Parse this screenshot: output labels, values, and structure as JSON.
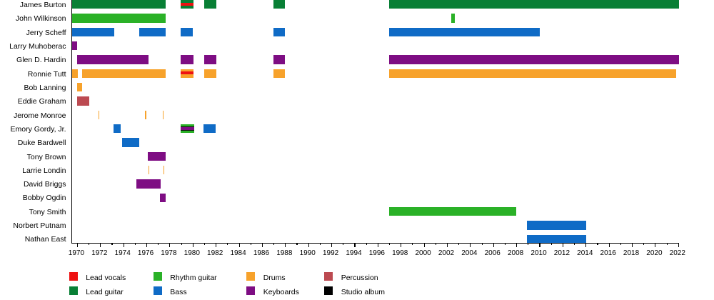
{
  "chart_data": {
    "type": "timeline",
    "title": "",
    "xlabel": "",
    "ylabel": "",
    "grid": false,
    "legend_position": "bottom",
    "x_axis": {
      "min": 1969.55,
      "max": 2022.06,
      "major_tick_years": [
        1970,
        1972,
        1974,
        1976,
        1978,
        1980,
        1982,
        1984,
        1986,
        1988,
        1990,
        1992,
        1994,
        1996,
        1998,
        2000,
        2002,
        2004,
        2006,
        2008,
        2010,
        2012,
        2014,
        2016,
        2018,
        2020,
        2022
      ],
      "minor_tick_step": 1
    },
    "roles": {
      "lead_vocals": {
        "label": "Lead vocals",
        "color": "#EE1111"
      },
      "lead_guitar": {
        "label": "Lead guitar",
        "color": "#087F35"
      },
      "rhythm_guitar": {
        "label": "Rhythm guitar",
        "color": "#2AB127"
      },
      "bass": {
        "label": "Bass",
        "color": "#0F6BC6"
      },
      "drums": {
        "label": "Drums",
        "color": "#F7A22B"
      },
      "keyboards": {
        "label": "Keyboards",
        "color": "#7E0D83"
      },
      "percussion": {
        "label": "Percussion",
        "color": "#BC4A51"
      },
      "studio_album": {
        "label": "Studio album",
        "color": "#000000"
      }
    },
    "legend_columns": [
      [
        "lead_vocals",
        "lead_guitar"
      ],
      [
        "rhythm_guitar",
        "bass"
      ],
      [
        "drums",
        "keyboards"
      ],
      [
        "percussion",
        "studio_album"
      ]
    ],
    "members": [
      {
        "name": "James Burton",
        "bars": [
          {
            "from": 1969.55,
            "to": 1977.63,
            "role": "lead_guitar"
          },
          {
            "from": 1978.92,
            "to": 1980.04,
            "role": "lead_guitar",
            "stripe": "lead_vocals"
          },
          {
            "from": 1980.96,
            "to": 1982.01,
            "role": "lead_guitar"
          },
          {
            "from": 1986.95,
            "to": 1987.96,
            "role": "lead_guitar"
          },
          {
            "from": 1996.97,
            "to": 2022.06,
            "role": "lead_guitar"
          }
        ]
      },
      {
        "name": "John Wilkinson",
        "bars": [
          {
            "from": 1969.55,
            "to": 1977.63,
            "role": "rhythm_guitar"
          },
          {
            "from": 2002.37,
            "to": 2002.65,
            "role": "rhythm_guitar"
          }
        ]
      },
      {
        "name": "Jerry Scheff",
        "bars": [
          {
            "from": 1969.55,
            "to": 1973.16,
            "role": "bass"
          },
          {
            "from": 1975.36,
            "to": 1977.65,
            "role": "bass"
          },
          {
            "from": 1978.94,
            "to": 1980.01,
            "role": "bass"
          },
          {
            "from": 1986.95,
            "to": 1987.96,
            "role": "bass"
          },
          {
            "from": 1996.97,
            "to": 2009.99,
            "role": "bass"
          }
        ]
      },
      {
        "name": "Larry Muhoberac",
        "bars": [
          {
            "from": 1969.55,
            "to": 1969.98,
            "role": "keyboards"
          }
        ]
      },
      {
        "name": "Glen D. Hardin",
        "bars": [
          {
            "from": 1969.99,
            "to": 1976.18,
            "role": "keyboards"
          },
          {
            "from": 1978.92,
            "to": 1980.04,
            "role": "keyboards"
          },
          {
            "from": 1980.96,
            "to": 1982.01,
            "role": "keyboards"
          },
          {
            "from": 1986.95,
            "to": 1987.96,
            "role": "keyboards"
          },
          {
            "from": 1996.97,
            "to": 2022.06,
            "role": "keyboards"
          }
        ]
      },
      {
        "name": "Ronnie Tutt",
        "bars": [
          {
            "from": 1969.55,
            "to": 1970.04,
            "role": "drums"
          },
          {
            "from": 1970.4,
            "to": 1977.66,
            "role": "drums"
          },
          {
            "from": 1978.92,
            "to": 1980.04,
            "role": "drums",
            "stripe": "lead_vocals"
          },
          {
            "from": 1980.96,
            "to": 1982.01,
            "role": "drums"
          },
          {
            "from": 1986.95,
            "to": 1987.96,
            "role": "drums"
          },
          {
            "from": 1996.97,
            "to": 2021.77,
            "role": "drums"
          }
        ]
      },
      {
        "name": "Bob Lanning",
        "bars": [
          {
            "from": 1969.98,
            "to": 1970.42,
            "role": "drums"
          }
        ]
      },
      {
        "name": "Eddie Graham",
        "bars": [
          {
            "from": 1969.98,
            "to": 1971.05,
            "role": "percussion"
          }
        ]
      },
      {
        "name": "Jerome Monroe",
        "bars": [
          {
            "from": 1971.8,
            "to": 1971.89,
            "role": "drums"
          },
          {
            "from": 1975.87,
            "to": 1975.95,
            "role": "drums"
          },
          {
            "from": 1977.38,
            "to": 1977.47,
            "role": "drums"
          }
        ]
      },
      {
        "name": "Emory Gordy, Jr.",
        "bars": [
          {
            "from": 1973.12,
            "to": 1973.74,
            "role": "bass"
          },
          {
            "from": 1978.91,
            "to": 1980.08,
            "role": "rhythm_guitar",
            "stripe": "keyboards",
            "stripe_bordered": true
          },
          {
            "from": 1980.9,
            "to": 1981.93,
            "role": "bass"
          }
        ]
      },
      {
        "name": "Duke Bardwell",
        "bars": [
          {
            "from": 1973.87,
            "to": 1975.32,
            "role": "bass"
          }
        ]
      },
      {
        "name": "Tony Brown",
        "bars": [
          {
            "from": 1976.11,
            "to": 1977.62,
            "role": "keyboards"
          }
        ]
      },
      {
        "name": "Larrie Londin",
        "bars": [
          {
            "from": 1976.13,
            "to": 1976.22,
            "role": "drums"
          },
          {
            "from": 1977.44,
            "to": 1977.53,
            "role": "drums"
          }
        ]
      },
      {
        "name": "David Briggs",
        "bars": [
          {
            "from": 1975.1,
            "to": 1977.21,
            "role": "keyboards"
          }
        ]
      },
      {
        "name": "Bobby Ogdin",
        "bars": [
          {
            "from": 1977.13,
            "to": 1977.63,
            "role": "keyboards"
          }
        ]
      },
      {
        "name": "Tony Smith",
        "bars": [
          {
            "from": 1996.96,
            "to": 2007.96,
            "role": "rhythm_guitar"
          }
        ]
      },
      {
        "name": "Norbert Putnam",
        "bars": [
          {
            "from": 2008.91,
            "to": 2014.04,
            "role": "bass"
          }
        ]
      },
      {
        "name": "Nathan East",
        "bars": [
          {
            "from": 2008.91,
            "to": 2014.0,
            "role": "bass"
          }
        ]
      }
    ]
  }
}
